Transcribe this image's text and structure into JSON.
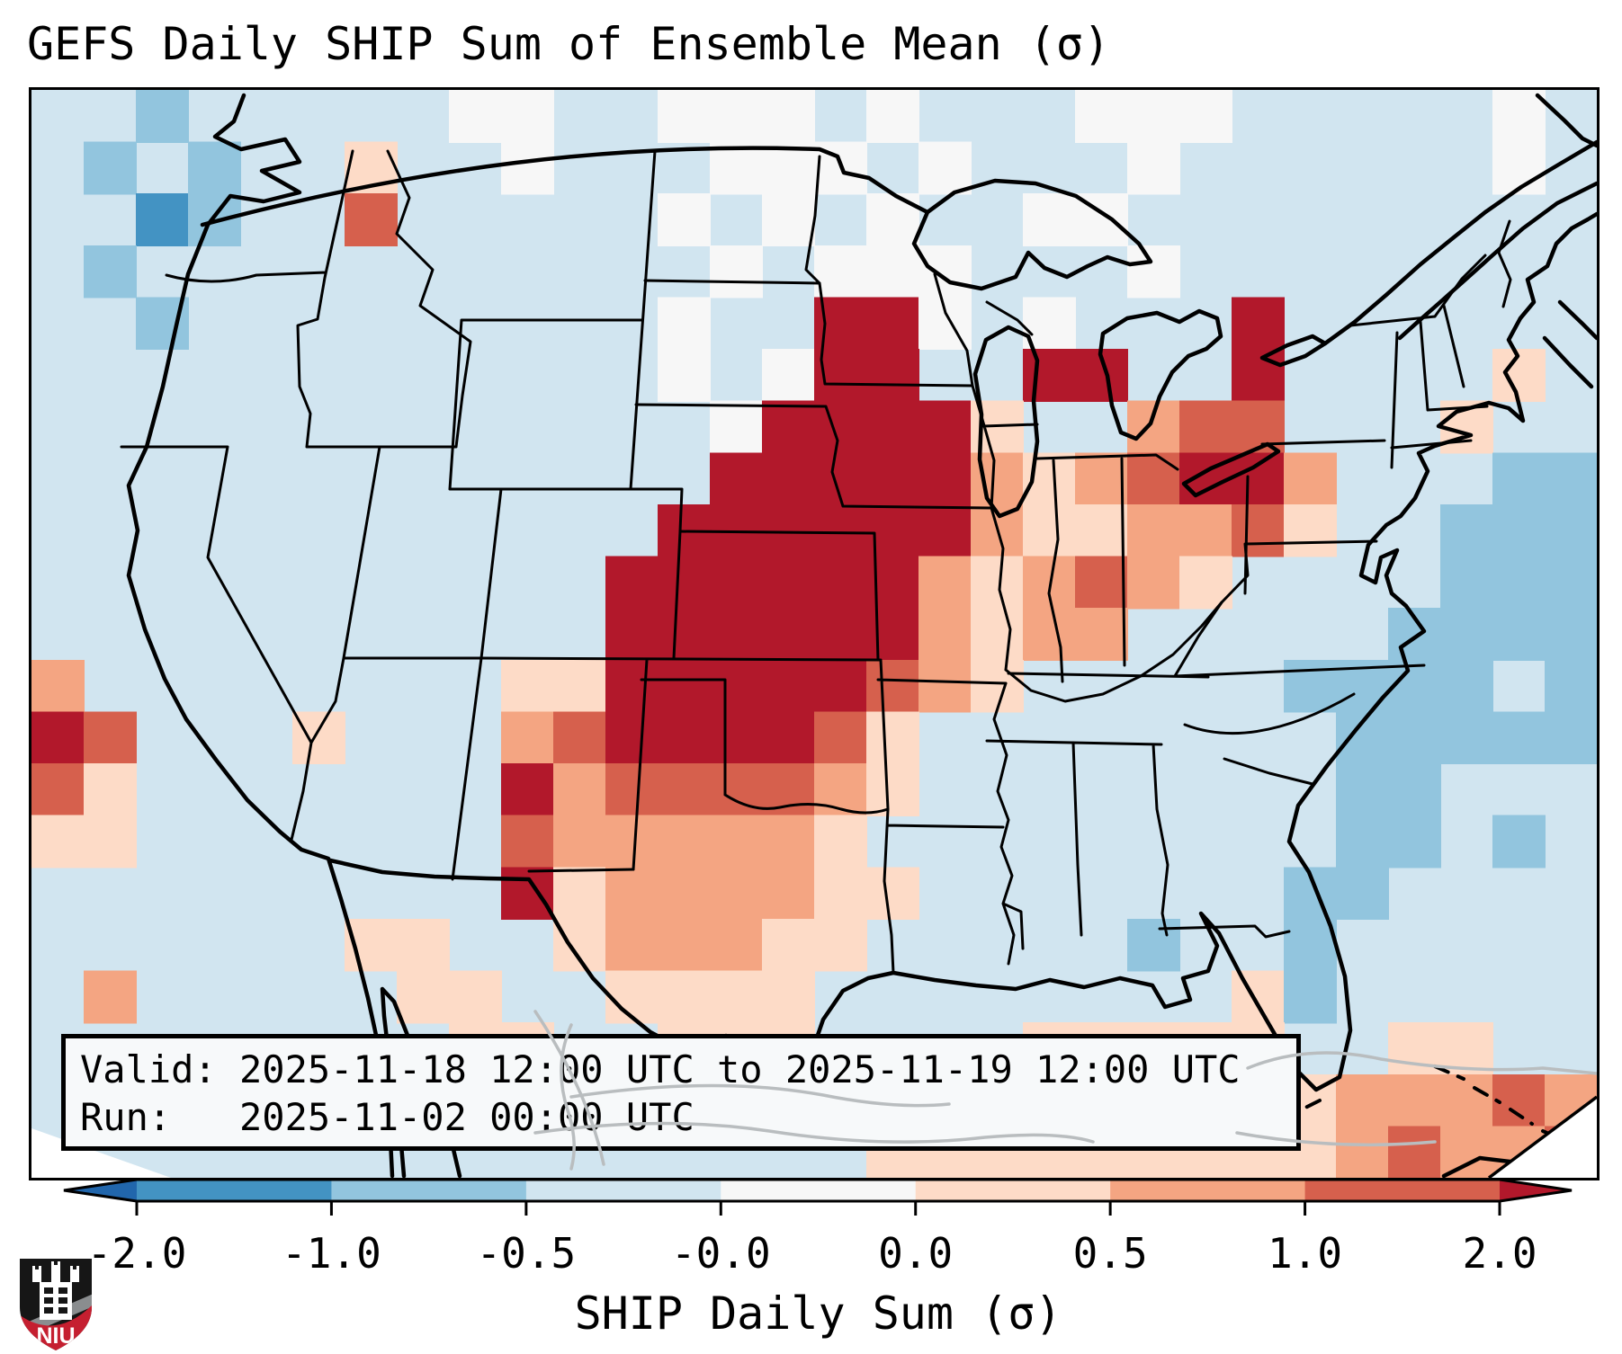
{
  "title": "GEFS Daily SHIP Sum of Ensemble Mean (σ)",
  "info_box": {
    "valid": "Valid: 2025-11-18 12:00 UTC to 2025-11-19 12:00 UTC",
    "run": "Run:   2025-11-02 00:00 UTC"
  },
  "colorbar": {
    "axis_label": "SHIP Daily Sum (σ)",
    "tick_labels": [
      "-2.0",
      "-1.0",
      "-0.5",
      "-0.0",
      "0.0",
      "0.5",
      "1.0",
      "2.0"
    ],
    "segment_colors": [
      "#4393c3",
      "#92c5de",
      "#d1e5f0",
      "#f7f7f7",
      "#fddbc7",
      "#f4a582",
      "#d6604d"
    ],
    "under_arrow_color": "#2166ac",
    "over_arrow_color": "#b2182b",
    "outline_color": "#000000"
  },
  "map": {
    "background_color": "#d1e5f0",
    "border_color": "#000000",
    "land_outline_color": "#000000",
    "foreign_outline_color": "#b9bdbf"
  },
  "heatmap": {
    "palette": {
      "B": "#4393c3",
      "b": "#92c5de",
      "w": "#f7f7f7",
      "p": "#fddbc7",
      "o": "#f4a582",
      "r": "#d6604d",
      "R": "#b2182b"
    },
    "base_value_color": "#d1e5f0",
    "bin_legend": {
      "B": "-2 to -1",
      "b": "-1 to -0.5",
      ".": "-0.5 to -0.0",
      "w": "-0.0 to 0.0",
      "p": "0.0 to 0.5",
      "o": "0.5 to 1.0",
      "r": "1.0 to 2.0",
      "R": "> 2.0"
    },
    "cols": 30,
    "rows": [
      "..b.....ww..www.w...www.....w.",
      ".b.b..p..w...www.w...w......w.",
      "..Bb..r.....w.w.w..ww.........",
      ".b...........w.www...w........",
      "..b.........w..RRw.w...R......",
      "............w.wRR..RR..R....p.",
      ".............wRRRRp..orr...p..",
      ".............RRRRRoporRRo...bb",
      "............RRRRRRoppoorp..bbb",
      "...........RRRRRRoporop....bbb",
      "...........RRRRRRopoo.....bbbb",
      "o........ppRRRRRrop.....bbbb.b",
      "Rr...p...orRRRRrp........bbbbb",
      "rp.......Rorrrrop........bb...",
      "pp.......rooooop.........bb.b.",
      ".........Rpoooopp.......bb....",
      "......pp..pooopp.....b..b.....",
      ".o.....pp..pppp........pb.....",
      "........pp..ppp....ppppp..pp..",
      "............pp...ppppppppoooro",
      "................ppppppppporoor"
    ]
  },
  "logo": {
    "text": "NIU",
    "shield_color": "#161616",
    "band_color": "#c51f30",
    "slash_color": "#8a8d8f",
    "text_color": "#ffffff"
  }
}
